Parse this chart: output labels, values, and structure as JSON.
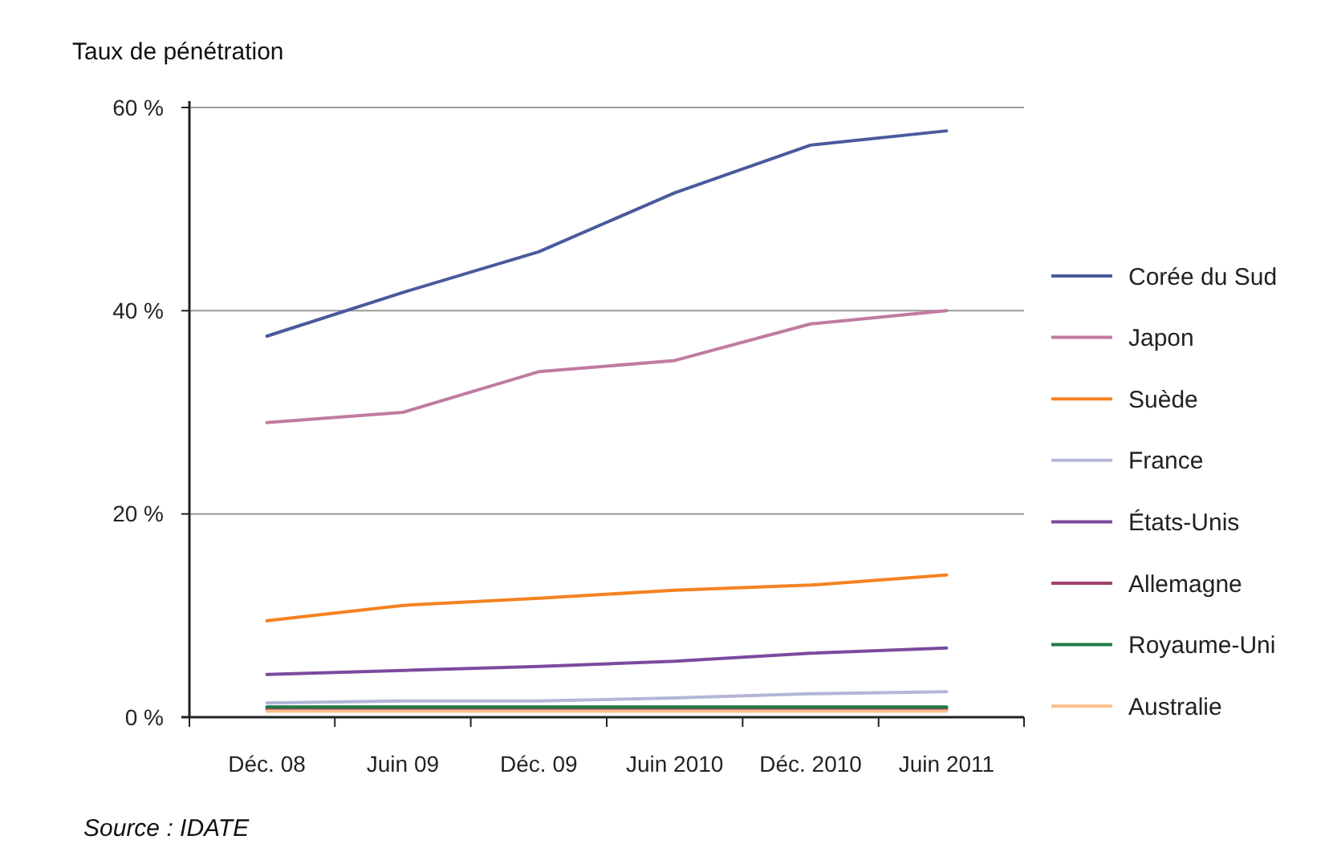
{
  "chart_data": {
    "type": "line",
    "ylabel": "Taux de pénétration",
    "categories": [
      "Déc. 08",
      "Juin 09",
      "Déc. 09",
      "Juin 2010",
      "Déc. 2010",
      "Juin 2011"
    ],
    "ylim": [
      0,
      60
    ],
    "yticks": [
      {
        "value": 0,
        "label": "0 %"
      },
      {
        "value": 20,
        "label": "20 %"
      },
      {
        "value": 40,
        "label": "40 %"
      },
      {
        "value": 60,
        "label": "60 %"
      }
    ],
    "grid": "y",
    "legend": "right",
    "marker": "none",
    "line_style": "solid",
    "series": [
      {
        "name": "Corée du Sud",
        "color": "#4a5a9c",
        "values": [
          37.5,
          41.8,
          45.8,
          51.6,
          56.3,
          57.7
        ]
      },
      {
        "name": "Japon",
        "color": "#c07ba0",
        "values": [
          29,
          30,
          34,
          35.1,
          38.7,
          40
        ]
      },
      {
        "name": "Suède",
        "color": "#f58220",
        "values": [
          9.5,
          11,
          11.7,
          12.5,
          13,
          14
        ]
      },
      {
        "name": "France",
        "color": "#b3b6d6",
        "values": [
          1.4,
          1.6,
          1.6,
          1.9,
          2.3,
          2.5
        ]
      },
      {
        "name": "États-Unis",
        "color": "#7b4a9e",
        "values": [
          4.2,
          4.6,
          5,
          5.5,
          6.3,
          6.8
        ]
      },
      {
        "name": "Allemagne",
        "color": "#a3426e",
        "values": [
          0.8,
          0.8,
          0.8,
          0.8,
          0.8,
          0.8
        ]
      },
      {
        "name": "Royaume-Uni",
        "color": "#1e7a45",
        "values": [
          1,
          1,
          1,
          1,
          1,
          1
        ]
      },
      {
        "name": "Australie",
        "color": "#fbc08a",
        "values": [
          0.6,
          0.6,
          0.6,
          0.6,
          0.6,
          0.6
        ]
      }
    ],
    "annotations": [
      "Source : IDATE"
    ]
  }
}
